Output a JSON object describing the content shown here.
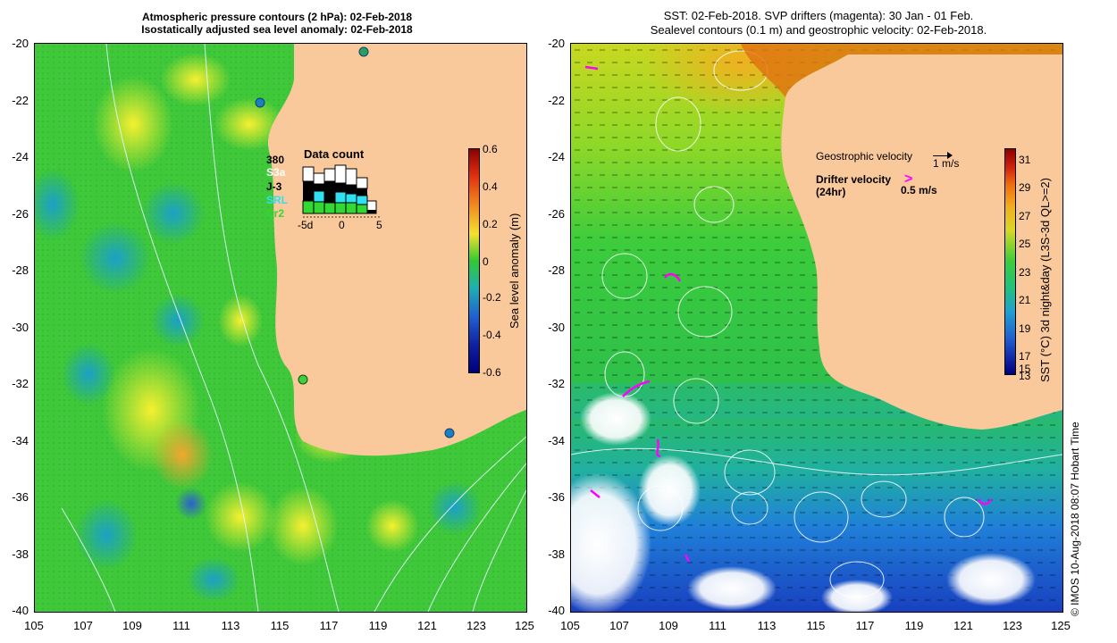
{
  "left_panel": {
    "title_line1": "Atmospheric pressure contours (2 hPa): 02-Feb-2018",
    "title_line2": "Isostatically adjusted sea level anomaly: 02-Feb-2018",
    "colorbar_label": "Sea level anomaly (m)",
    "colorbar_ticks": [
      "0.6",
      "0.4",
      "0.2",
      "0",
      "-0.2",
      "-0.4",
      "-0.6"
    ],
    "data_count": {
      "title": "Data count",
      "legend": [
        "380",
        "S3a",
        "J-3",
        "SRL",
        "Cr2"
      ],
      "axis": [
        "-5d",
        "0",
        "5"
      ]
    }
  },
  "right_panel": {
    "title_line1": "SST: 02-Feb-2018. SVP drifters (magenta): 30 Jan - 01 Feb.",
    "title_line2": "Sealevel contours (0.1 m) and geostrophic velocity: 02-Feb-2018.",
    "colorbar_label": "SST (°C) 3d night&day (L3S-3d QL>=2)",
    "colorbar_ticks": [
      "31",
      "29",
      "27",
      "25",
      "23",
      "21",
      "19",
      "17",
      "15",
      "13"
    ],
    "legend": {
      "geo_label": "Geostrophic velocity",
      "geo_scale": "1 m/s",
      "drifter_label": "Drifter velocity",
      "drifter_sub": "(24hr)",
      "drifter_scale": "0.5 m/s"
    }
  },
  "axes": {
    "lat_ticks": [
      "-20",
      "-22",
      "-24",
      "-26",
      "-28",
      "-30",
      "-32",
      "-34",
      "-36",
      "-38",
      "-40"
    ],
    "lon_ticks": [
      "105",
      "107",
      "109",
      "111",
      "113",
      "115",
      "117",
      "119",
      "121",
      "123",
      "125"
    ]
  },
  "credit": "©  IMOS 10-Aug-2018 08:07 Hobart Time",
  "colors": {
    "land": "#F9C89B",
    "sla_green": "#33C833",
    "sst_green": "#2ECC40",
    "drifter": "#FF00FF"
  }
}
